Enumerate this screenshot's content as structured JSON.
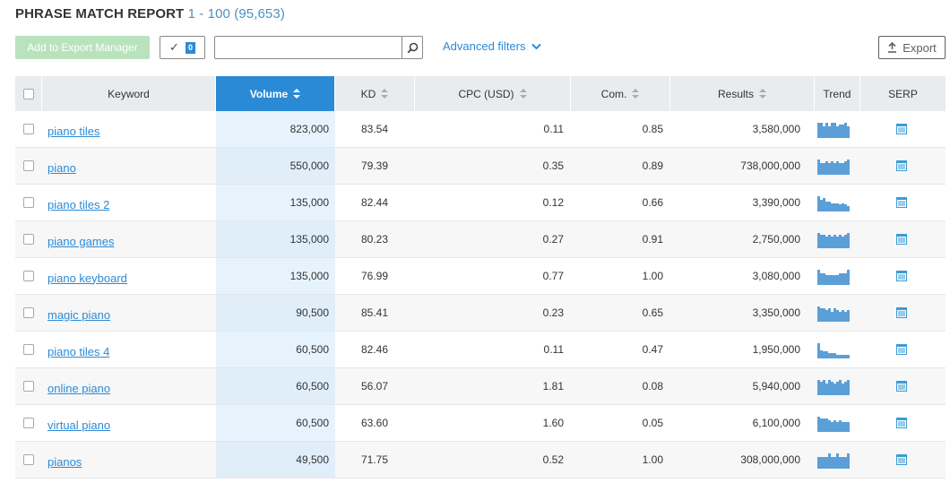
{
  "header": {
    "title": "PHRASE MATCH REPORT",
    "range": "1 - 100 (95,653)"
  },
  "toolbar": {
    "export_manager_label": "Add to Export Manager",
    "selected_count": "0",
    "search_placeholder": "",
    "advanced_filters_label": "Advanced filters",
    "export_label": "Export"
  },
  "table": {
    "columns": {
      "keyword": "Keyword",
      "volume": "Volume",
      "kd": "KD",
      "cpc": "CPC (USD)",
      "com": "Com.",
      "results": "Results",
      "trend": "Trend",
      "serp": "SERP"
    },
    "rows": [
      {
        "keyword": "piano tiles",
        "volume": "823,000",
        "kd": "83.54",
        "cpc": "0.11",
        "com": "0.85",
        "results": "3,580,000",
        "trend": [
          9,
          9,
          7,
          9,
          7,
          9,
          9,
          7,
          8,
          8,
          9,
          7
        ]
      },
      {
        "keyword": "piano",
        "volume": "550,000",
        "kd": "79.39",
        "cpc": "0.35",
        "com": "0.89",
        "results": "738,000,000",
        "trend": [
          9,
          7,
          7,
          8,
          7,
          8,
          7,
          8,
          7,
          7,
          8,
          9
        ]
      },
      {
        "keyword": "piano tiles 2",
        "volume": "135,000",
        "kd": "82.44",
        "cpc": "0.12",
        "com": "0.66",
        "results": "3,390,000",
        "trend": [
          9,
          7,
          8,
          6,
          6,
          5,
          5,
          5,
          4,
          5,
          4,
          3
        ]
      },
      {
        "keyword": "piano games",
        "volume": "135,000",
        "kd": "80.23",
        "cpc": "0.27",
        "com": "0.91",
        "results": "2,750,000",
        "trend": [
          9,
          8,
          8,
          7,
          8,
          7,
          8,
          7,
          8,
          7,
          8,
          9
        ]
      },
      {
        "keyword": "piano keyboard",
        "volume": "135,000",
        "kd": "76.99",
        "cpc": "0.77",
        "com": "1.00",
        "results": "3,080,000",
        "trend": [
          9,
          7,
          7,
          6,
          6,
          6,
          6,
          6,
          7,
          7,
          7,
          9
        ]
      },
      {
        "keyword": "magic piano",
        "volume": "90,500",
        "kd": "85.41",
        "cpc": "0.23",
        "com": "0.65",
        "results": "3,350,000",
        "trend": [
          9,
          8,
          8,
          7,
          8,
          6,
          8,
          7,
          6,
          7,
          6,
          7
        ]
      },
      {
        "keyword": "piano tiles 4",
        "volume": "60,500",
        "kd": "82.46",
        "cpc": "0.11",
        "com": "0.47",
        "results": "1,950,000",
        "trend": [
          9,
          5,
          4,
          4,
          3,
          3,
          3,
          2,
          2,
          2,
          2,
          2
        ]
      },
      {
        "keyword": "online piano",
        "volume": "60,500",
        "kd": "56.07",
        "cpc": "1.81",
        "com": "0.08",
        "results": "5,940,000",
        "trend": [
          9,
          8,
          9,
          7,
          9,
          8,
          7,
          8,
          9,
          7,
          8,
          9
        ]
      },
      {
        "keyword": "virtual piano",
        "volume": "60,500",
        "kd": "63.60",
        "cpc": "1.60",
        "com": "0.05",
        "results": "6,100,000",
        "trend": [
          9,
          8,
          8,
          8,
          7,
          6,
          7,
          6,
          7,
          6,
          6,
          6
        ]
      },
      {
        "keyword": "pianos",
        "volume": "49,500",
        "kd": "71.75",
        "cpc": "0.52",
        "com": "1.00",
        "results": "308,000,000",
        "trend": [
          7,
          7,
          7,
          7,
          9,
          7,
          7,
          9,
          7,
          7,
          7,
          9
        ]
      }
    ]
  },
  "colors": {
    "accent": "#2b8ad6",
    "trend_bars": "#5b9fd8",
    "export_manager_bg": "#b9e3bd"
  },
  "icons": {
    "search": "magnifier-icon",
    "advanced_filters": "chevron-down-icon",
    "export": "upload-icon",
    "serp": "serp-page-icon"
  }
}
